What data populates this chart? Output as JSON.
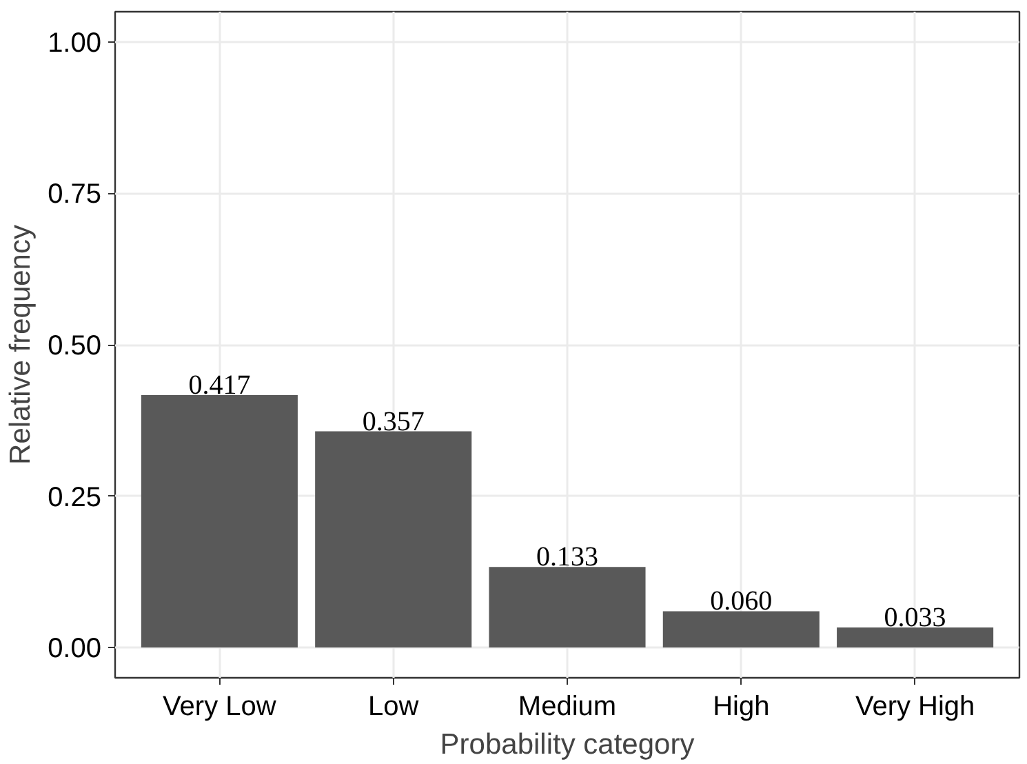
{
  "chart_data": {
    "type": "bar",
    "xlabel": "Probability category",
    "ylabel": "Relative frequency",
    "categories": [
      "Very Low",
      "Low",
      "Medium",
      "High",
      "Very High"
    ],
    "values": [
      0.417,
      0.357,
      0.133,
      0.06,
      0.033
    ],
    "value_labels": [
      "0.417",
      "0.357",
      "0.133",
      "0.060",
      "0.033"
    ],
    "color": "#595959",
    "ylim": [
      -0.05,
      1.05
    ],
    "yticks": [
      {
        "value": 0,
        "label": "0.00"
      },
      {
        "value": 0.25,
        "label": "0.25"
      },
      {
        "value": 0.5,
        "label": "0.50"
      },
      {
        "value": 0.75,
        "label": "0.75"
      },
      {
        "value": 1,
        "label": "1.00"
      }
    ],
    "grid": true
  }
}
